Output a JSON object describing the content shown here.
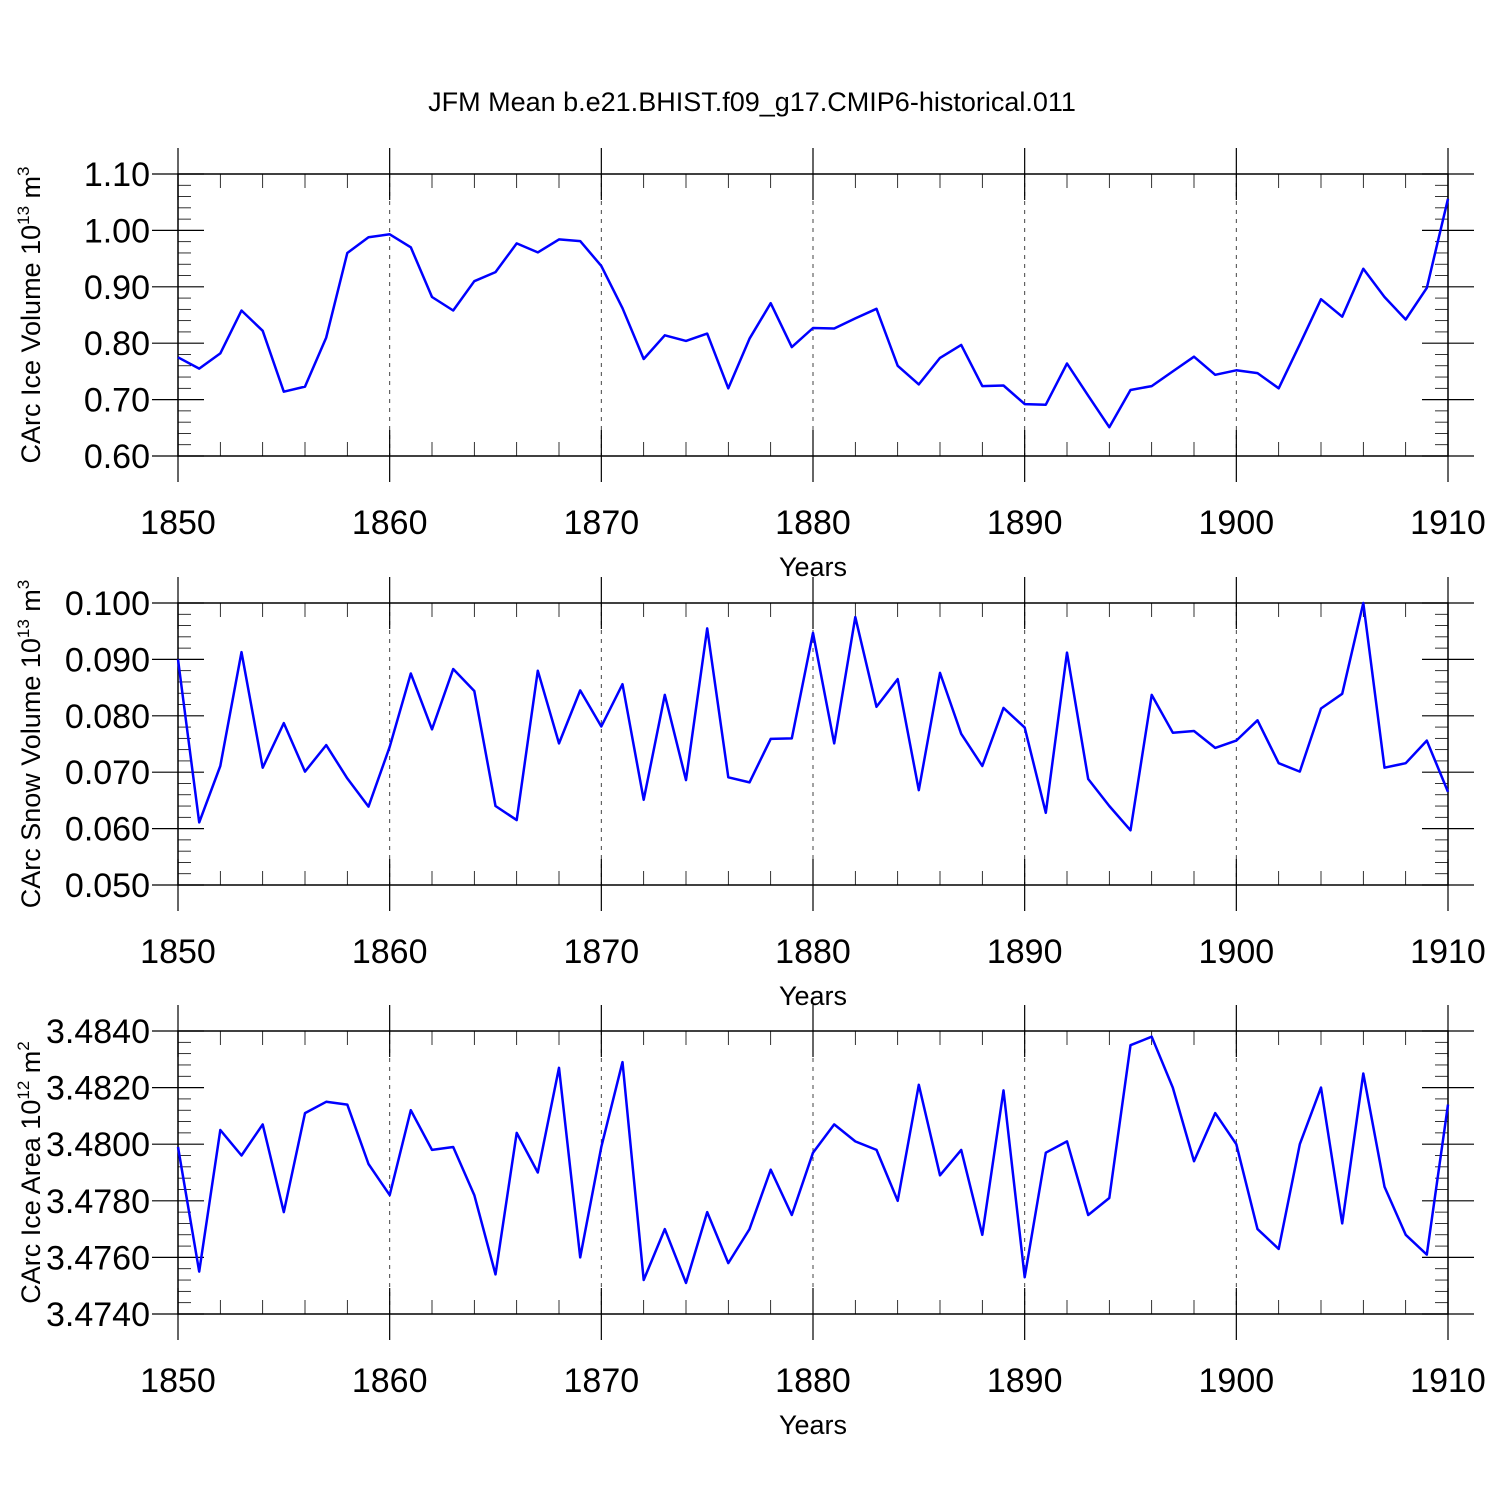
{
  "title": "JFM Mean b.e21.BHIST.f09_g17.CMIP6-historical.011",
  "colors": {
    "line": "#0000ff",
    "axes": "#000000",
    "grid": "#444444"
  },
  "chart_data": [
    {
      "type": "line",
      "xlabel": "Years",
      "ylabel_text": "CArc Ice Volume 10",
      "ylabel_exp": "13",
      "ylabel_unit": " m",
      "ylabel_unit_exp": "3",
      "xlim": [
        1850,
        1910
      ],
      "ylim": [
        0.6,
        1.1
      ],
      "xticks": [
        1850,
        1860,
        1870,
        1880,
        1890,
        1900,
        1910
      ],
      "xtick_labels": [
        "1850",
        "1860",
        "1870",
        "1880",
        "1890",
        "1900",
        "1910"
      ],
      "yticks": [
        0.6,
        0.7,
        0.8,
        0.9,
        1.0,
        1.1
      ],
      "ytick_labels": [
        "0.60",
        "0.70",
        "0.80",
        "0.90",
        "1.00",
        "1.10"
      ],
      "x_start": 1850,
      "values": [
        0.775,
        0.755,
        0.782,
        0.858,
        0.822,
        0.714,
        0.723,
        0.81,
        0.96,
        0.988,
        0.993,
        0.97,
        0.882,
        0.858,
        0.91,
        0.926,
        0.977,
        0.961,
        0.984,
        0.981,
        0.937,
        0.862,
        0.772,
        0.814,
        0.804,
        0.817,
        0.72,
        0.808,
        0.871,
        0.793,
        0.827,
        0.826,
        0.844,
        0.861,
        0.76,
        0.727,
        0.774,
        0.797,
        0.724,
        0.725,
        0.692,
        0.691,
        0.764,
        0.707,
        0.651,
        0.717,
        0.724,
        0.75,
        0.776,
        0.744,
        0.752,
        0.747,
        0.72,
        0.798,
        0.878,
        0.847,
        0.932,
        0.882,
        0.842,
        0.898,
        1.056
      ]
    },
    {
      "type": "line",
      "xlabel": "Years",
      "ylabel_text": "CArc Snow Volume 10",
      "ylabel_exp": "13",
      "ylabel_unit": " m",
      "ylabel_unit_exp": "3",
      "xlim": [
        1850,
        1910
      ],
      "ylim": [
        0.05,
        0.1
      ],
      "xticks": [
        1850,
        1860,
        1870,
        1880,
        1890,
        1900,
        1910
      ],
      "xtick_labels": [
        "1850",
        "1860",
        "1870",
        "1880",
        "1890",
        "1900",
        "1910"
      ],
      "yticks": [
        0.05,
        0.06,
        0.07,
        0.08,
        0.09,
        0.1
      ],
      "ytick_labels": [
        "0.050",
        "0.060",
        "0.070",
        "0.080",
        "0.090",
        "0.100"
      ],
      "x_start": 1850,
      "values": [
        0.09,
        0.0611,
        0.0711,
        0.0913,
        0.0708,
        0.0787,
        0.0701,
        0.0748,
        0.0689,
        0.0639,
        0.0745,
        0.0875,
        0.0776,
        0.0883,
        0.0844,
        0.064,
        0.0615,
        0.088,
        0.0751,
        0.0845,
        0.0781,
        0.0856,
        0.0651,
        0.0837,
        0.0686,
        0.0955,
        0.0691,
        0.0682,
        0.0759,
        0.076,
        0.0947,
        0.0751,
        0.0975,
        0.0816,
        0.0865,
        0.0668,
        0.0876,
        0.0768,
        0.0711,
        0.0814,
        0.0779,
        0.0628,
        0.0912,
        0.0688,
        0.064,
        0.0597,
        0.0837,
        0.077,
        0.0773,
        0.0743,
        0.0756,
        0.0792,
        0.0716,
        0.0701,
        0.0813,
        0.0839,
        0.1,
        0.0708,
        0.0716,
        0.0756,
        0.0665
      ]
    },
    {
      "type": "line",
      "xlabel": "Years",
      "ylabel_text": "CArc Ice Area 10",
      "ylabel_exp": "12",
      "ylabel_unit": " m",
      "ylabel_unit_exp": "2",
      "xlim": [
        1850,
        1910
      ],
      "ylim": [
        3.474,
        3.484
      ],
      "xticks": [
        1850,
        1860,
        1870,
        1880,
        1890,
        1900,
        1910
      ],
      "xtick_labels": [
        "1850",
        "1860",
        "1870",
        "1880",
        "1890",
        "1900",
        "1910"
      ],
      "yticks": [
        3.474,
        3.476,
        3.478,
        3.48,
        3.482,
        3.484
      ],
      "ytick_labels": [
        "3.4740",
        "3.4760",
        "3.4780",
        "3.4800",
        "3.4820",
        "3.4840"
      ],
      "x_start": 1850,
      "values": [
        3.4799,
        3.4755,
        3.4805,
        3.4796,
        3.4807,
        3.4776,
        3.4811,
        3.4815,
        3.4814,
        3.4793,
        3.4782,
        3.4812,
        3.4798,
        3.4799,
        3.4782,
        3.4754,
        3.4804,
        3.479,
        3.4827,
        3.476,
        3.4799,
        3.4829,
        3.4752,
        3.477,
        3.4751,
        3.4776,
        3.4758,
        3.477,
        3.4791,
        3.4775,
        3.4797,
        3.4807,
        3.4801,
        3.4798,
        3.478,
        3.4821,
        3.4789,
        3.4798,
        3.4768,
        3.4819,
        3.4753,
        3.4797,
        3.4801,
        3.4775,
        3.4781,
        3.4835,
        3.4838,
        3.482,
        3.4794,
        3.4811,
        3.48,
        3.477,
        3.4763,
        3.48,
        3.482,
        3.4772,
        3.4825,
        3.4785,
        3.4768,
        3.4761,
        3.4814
      ]
    }
  ]
}
